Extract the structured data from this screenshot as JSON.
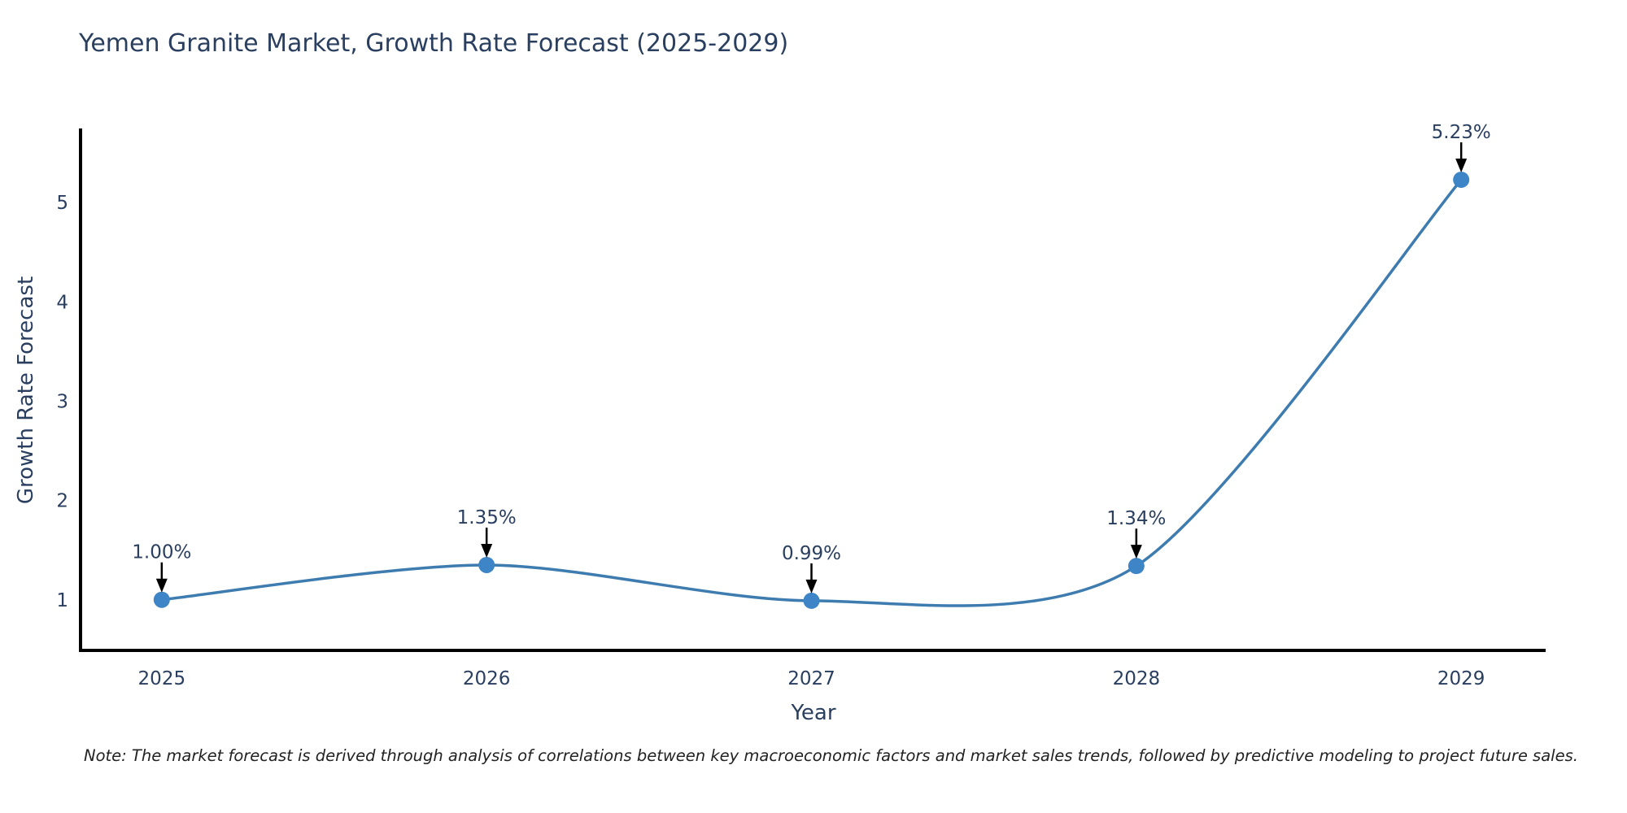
{
  "note": "Note: The market forecast is derived through analysis of correlations between key macroeconomic factors and market sales trends, followed by predictive modeling to project future sales.",
  "colors": {
    "background": "#ffffff",
    "title": "#2a3f5f",
    "text": "#2a3f5f",
    "axis": "#000000",
    "line": "#3e7cb0",
    "marker": "#3d85c6",
    "arrow": "#000000",
    "note": "#222222"
  },
  "chart_data": {
    "type": "line",
    "line_shape": "spline",
    "title": "Yemen Granite Market, Growth Rate Forecast (2025-2029)",
    "xlabel": "Year",
    "ylabel": "Growth Rate Forecast",
    "x": [
      2025,
      2026,
      2027,
      2028,
      2029
    ],
    "x_tick_labels": [
      "2025",
      "2026",
      "2027",
      "2028",
      "2029"
    ],
    "series": [
      {
        "name": "Growth Rate Forecast",
        "values": [
          1.0,
          1.35,
          0.99,
          1.34,
          5.23
        ]
      }
    ],
    "point_labels": [
      "1.00%",
      "1.35%",
      "0.99%",
      "1.34%",
      "5.23%"
    ],
    "yticks": [
      1,
      2,
      3,
      4,
      5
    ],
    "xlim": [
      2024.75,
      2029.26
    ],
    "ylim": [
      0.49,
      5.73
    ],
    "grid": false,
    "legend": "none",
    "markers": true
  }
}
